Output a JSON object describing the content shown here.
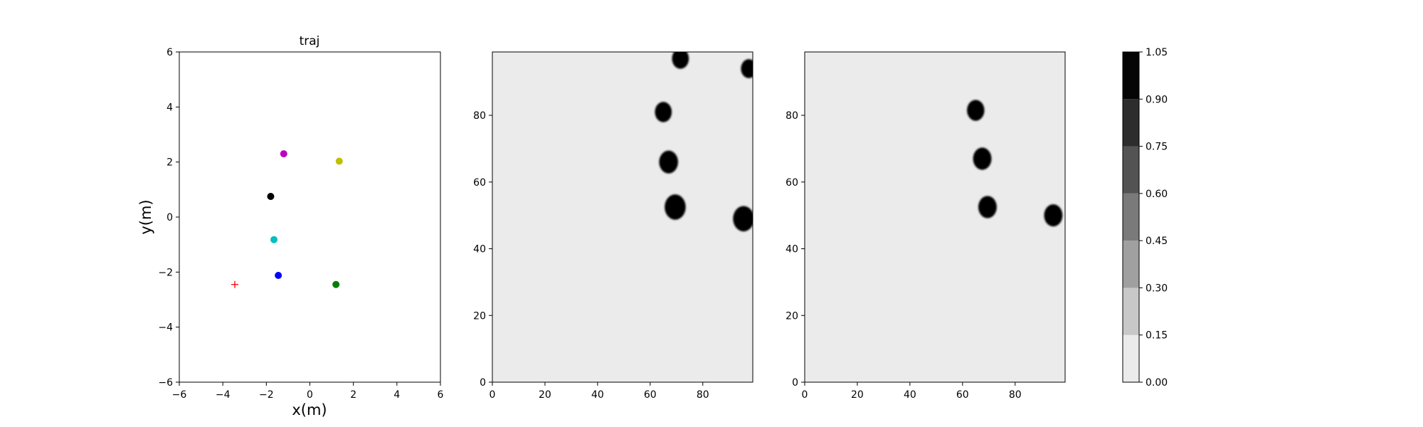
{
  "chart_data": [
    {
      "type": "scatter",
      "title": "traj",
      "xlabel": "x(m)",
      "ylabel": "y(m)",
      "xlim": [
        -6,
        6
      ],
      "ylim": [
        -6,
        6
      ],
      "xticks": [
        -6,
        -4,
        -2,
        0,
        2,
        4,
        6
      ],
      "yticks": [
        -6,
        -4,
        -2,
        0,
        2,
        4,
        6
      ],
      "xtick_labels": [
        "−6",
        "−4",
        "−2",
        "0",
        "2",
        "4",
        "6"
      ],
      "ytick_labels": [
        "−6",
        "−4",
        "−2",
        "0",
        "2",
        "4",
        "6"
      ],
      "grid": false,
      "points": [
        {
          "x": -1.2,
          "y": 2.3,
          "color": "#bf00bf",
          "marker": "circle"
        },
        {
          "x": 1.35,
          "y": 2.03,
          "color": "#bfbf00",
          "marker": "circle"
        },
        {
          "x": -1.8,
          "y": 0.75,
          "color": "#000000",
          "marker": "circle"
        },
        {
          "x": -1.65,
          "y": -0.82,
          "color": "#00bfbf",
          "marker": "circle"
        },
        {
          "x": -1.45,
          "y": -2.12,
          "color": "#0000ff",
          "marker": "circle"
        },
        {
          "x": 1.2,
          "y": -2.45,
          "color": "#008000",
          "marker": "circle"
        },
        {
          "x": -3.45,
          "y": -2.45,
          "color": "#ff0000",
          "marker": "plus"
        }
      ]
    },
    {
      "type": "heatmap",
      "title": "",
      "xlim": [
        0,
        99
      ],
      "ylim": [
        0,
        99
      ],
      "xticks": [
        0,
        20,
        40,
        60,
        80
      ],
      "yticks": [
        0,
        20,
        40,
        60,
        80
      ],
      "background_value": 0.05,
      "blobs": [
        {
          "x": 71.5,
          "y": 97,
          "r": 3.2,
          "value": 1.0
        },
        {
          "x": 97.5,
          "y": 94,
          "r": 3.0,
          "value": 1.0
        },
        {
          "x": 65,
          "y": 81,
          "r": 3.2,
          "value": 1.0
        },
        {
          "x": 67,
          "y": 66,
          "r": 3.6,
          "value": 1.0
        },
        {
          "x": 69.5,
          "y": 52.5,
          "r": 4.0,
          "value": 1.0
        },
        {
          "x": 95.5,
          "y": 49,
          "r": 4.0,
          "value": 1.0
        }
      ]
    },
    {
      "type": "heatmap",
      "title": "",
      "xlim": [
        0,
        99
      ],
      "ylim": [
        0,
        99
      ],
      "xticks": [
        0,
        20,
        40,
        60,
        80
      ],
      "yticks": [
        0,
        20,
        40,
        60,
        80
      ],
      "background_value": 0.05,
      "blobs": [
        {
          "x": 65,
          "y": 81.5,
          "r": 3.3,
          "value": 1.0
        },
        {
          "x": 67.5,
          "y": 67,
          "r": 3.5,
          "value": 1.0
        },
        {
          "x": 69.5,
          "y": 52.5,
          "r": 3.5,
          "value": 1.0
        },
        {
          "x": 94.5,
          "y": 50,
          "r": 3.5,
          "value": 1.0
        }
      ]
    }
  ],
  "colorbar": {
    "levels": [
      0.0,
      0.15,
      0.3,
      0.45,
      0.6,
      0.75,
      0.9,
      1.05
    ],
    "tick_labels": [
      "0.00",
      "0.15",
      "0.30",
      "0.45",
      "0.60",
      "0.75",
      "0.90",
      "1.05"
    ],
    "colors": [
      "#ebebeb",
      "#c8c8c8",
      "#a0a0a0",
      "#7a7a7a",
      "#535353",
      "#2d2d2d",
      "#050505"
    ]
  }
}
